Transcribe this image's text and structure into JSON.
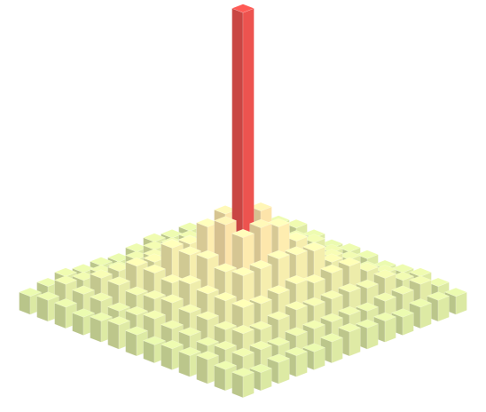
{
  "chart_data": {
    "type": "bar3d",
    "zlim": [
      0,
      100
    ],
    "colors": [
      "#b9dc93",
      "#f4e6aa",
      "#e4504c"
    ],
    "values": [
      [
        7,
        6,
        7,
        8,
        7,
        6,
        7,
        7,
        6,
        7,
        8,
        7,
        6
      ],
      [
        7,
        9,
        9,
        8,
        9,
        10,
        9,
        9,
        8,
        9,
        9,
        10,
        7
      ],
      [
        6,
        9,
        12,
        11,
        12,
        13,
        12,
        12,
        11,
        12,
        12,
        9,
        7
      ],
      [
        7,
        8,
        12,
        16,
        15,
        17,
        16,
        16,
        15,
        16,
        11,
        9,
        6
      ],
      [
        7,
        9,
        11,
        16,
        22,
        21,
        23,
        22,
        21,
        16,
        12,
        8,
        7
      ],
      [
        8,
        9,
        12,
        15,
        22,
        30,
        32,
        29,
        22,
        15,
        12,
        9,
        7
      ],
      [
        7,
        10,
        13,
        16,
        23,
        31,
        100,
        31,
        23,
        17,
        12,
        9,
        8
      ],
      [
        6,
        9,
        12,
        16,
        21,
        29,
        32,
        30,
        22,
        16,
        13,
        9,
        7
      ],
      [
        7,
        8,
        11,
        15,
        22,
        22,
        23,
        21,
        22,
        15,
        12,
        9,
        6
      ],
      [
        7,
        9,
        12,
        16,
        16,
        15,
        17,
        16,
        16,
        16,
        11,
        8,
        7
      ],
      [
        8,
        9,
        12,
        12,
        11,
        12,
        13,
        12,
        12,
        11,
        12,
        9,
        7
      ],
      [
        7,
        10,
        9,
        9,
        8,
        9,
        10,
        9,
        9,
        8,
        9,
        9,
        6
      ],
      [
        6,
        7,
        7,
        6,
        7,
        8,
        7,
        6,
        7,
        7,
        8,
        7,
        7
      ]
    ]
  }
}
